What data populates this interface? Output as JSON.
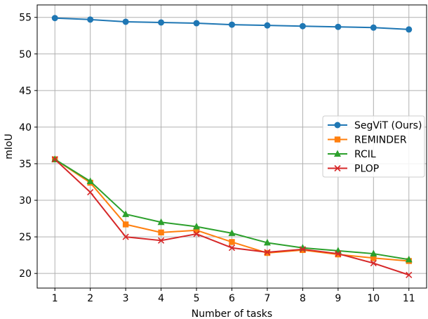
{
  "chart_data": {
    "type": "line",
    "title": "",
    "xlabel": "Number of tasks",
    "ylabel": "mIoU",
    "x": [
      1,
      2,
      3,
      4,
      5,
      6,
      7,
      8,
      9,
      10,
      11
    ],
    "xlim": [
      0.5,
      11.5
    ],
    "ylim": [
      18,
      56.7
    ],
    "xticks": [
      1,
      2,
      3,
      4,
      5,
      6,
      7,
      8,
      9,
      10,
      11
    ],
    "yticks": [
      20,
      25,
      30,
      35,
      40,
      45,
      50,
      55
    ],
    "grid": true,
    "legend_position": "right",
    "series": [
      {
        "name": "SegViT (Ours)",
        "color": "#1f77b4",
        "marker": "circle",
        "values": [
          54.9,
          54.7,
          54.4,
          54.3,
          54.2,
          54.0,
          53.9,
          53.8,
          53.7,
          53.6,
          53.35
        ]
      },
      {
        "name": "REMINDER",
        "color": "#ff7f0e",
        "marker": "square",
        "values": [
          35.6,
          32.4,
          26.7,
          25.6,
          25.9,
          24.3,
          22.8,
          23.2,
          22.6,
          22.1,
          21.7
        ]
      },
      {
        "name": "RCIL",
        "color": "#2ca02c",
        "marker": "triangle",
        "values": [
          35.6,
          32.6,
          28.1,
          27.0,
          26.4,
          25.5,
          24.2,
          23.5,
          23.1,
          22.7,
          21.9
        ]
      },
      {
        "name": "PLOP",
        "color": "#d62728",
        "marker": "x",
        "values": [
          35.6,
          31.1,
          25.0,
          24.5,
          25.4,
          23.5,
          22.9,
          23.3,
          22.7,
          21.4,
          19.8
        ]
      }
    ]
  }
}
